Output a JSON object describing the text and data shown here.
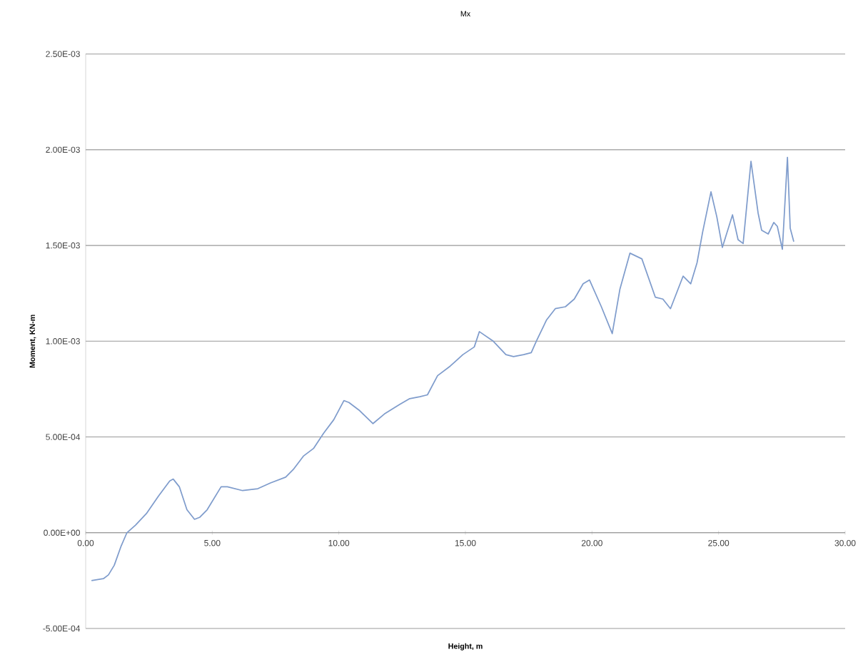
{
  "chart_data": {
    "type": "line",
    "title": "Mx",
    "xlabel": "Height, m",
    "ylabel": "Moment, KN-m",
    "xlim": [
      0,
      30
    ],
    "ylim": [
      -0.0005,
      0.0025
    ],
    "xticks": [
      {
        "value": 0,
        "label": "0.00"
      },
      {
        "value": 5,
        "label": "5.00"
      },
      {
        "value": 10,
        "label": "10.00"
      },
      {
        "value": 15,
        "label": "15.00"
      },
      {
        "value": 20,
        "label": "20.00"
      },
      {
        "value": 25,
        "label": "25.00"
      },
      {
        "value": 30,
        "label": "30.00"
      }
    ],
    "yticks": [
      {
        "value": -0.0005,
        "label": "-5.00E-04"
      },
      {
        "value": 0,
        "label": "0.00E+00"
      },
      {
        "value": 0.0005,
        "label": "5.00E-04"
      },
      {
        "value": 0.001,
        "label": "1.00E-03"
      },
      {
        "value": 0.0015,
        "label": "1.50E-03"
      },
      {
        "value": 0.002,
        "label": "2.00E-03"
      },
      {
        "value": 0.0025,
        "label": "2.50E-03"
      }
    ],
    "grid": "y",
    "marker": "none",
    "line_style": "solid",
    "series": [
      {
        "color": "#7f9ccc",
        "x": [
          0.23,
          0.7,
          0.9,
          1.13,
          1.4,
          1.63,
          1.97,
          2.4,
          2.87,
          3.32,
          3.46,
          3.7,
          4.0,
          4.3,
          4.5,
          4.8,
          5.35,
          5.6,
          6.2,
          6.8,
          7.3,
          7.9,
          8.2,
          8.6,
          9.0,
          9.4,
          9.8,
          10.2,
          10.4,
          10.8,
          11.35,
          11.8,
          12.4,
          12.8,
          13.2,
          13.5,
          13.9,
          14.4,
          14.9,
          15.35,
          15.55,
          16.1,
          16.6,
          16.9,
          17.3,
          17.6,
          17.8,
          18.2,
          18.55,
          18.95,
          19.3,
          19.65,
          19.9,
          20.37,
          20.8,
          21.1,
          21.5,
          21.97,
          22.5,
          22.8,
          23.1,
          23.6,
          23.9,
          24.15,
          24.37,
          24.7,
          24.93,
          25.15,
          25.55,
          25.77,
          25.97,
          26.28,
          26.56,
          26.7,
          26.96,
          27.18,
          27.32,
          27.52,
          27.72,
          27.83,
          27.97
        ],
        "values": [
          -0.00025,
          -0.00024,
          -0.00022,
          -0.00017,
          -7e-05,
          0.0,
          4e-05,
          0.0001,
          0.00019,
          0.00027,
          0.00028,
          0.00024,
          0.00012,
          7e-05,
          8e-05,
          0.00012,
          0.00024,
          0.00024,
          0.00022,
          0.00023,
          0.00026,
          0.00029,
          0.00033,
          0.0004,
          0.00044,
          0.00052,
          0.00059,
          0.00069,
          0.00068,
          0.00064,
          0.00057,
          0.00062,
          0.00067,
          0.0007,
          0.00071,
          0.00072,
          0.00082,
          0.00087,
          0.00093,
          0.00097,
          0.00105,
          0.001,
          0.00093,
          0.00092,
          0.00093,
          0.00094,
          0.001,
          0.00111,
          0.00117,
          0.00118,
          0.00122,
          0.0013,
          0.00132,
          0.00118,
          0.00104,
          0.00127,
          0.00146,
          0.00143,
          0.00123,
          0.00122,
          0.00117,
          0.00134,
          0.0013,
          0.00141,
          0.00157,
          0.00178,
          0.00165,
          0.00149,
          0.00166,
          0.00153,
          0.00151,
          0.00194,
          0.00167,
          0.00158,
          0.00156,
          0.00162,
          0.0016,
          0.00148,
          0.00196,
          0.00159,
          0.00152
        ]
      }
    ]
  }
}
